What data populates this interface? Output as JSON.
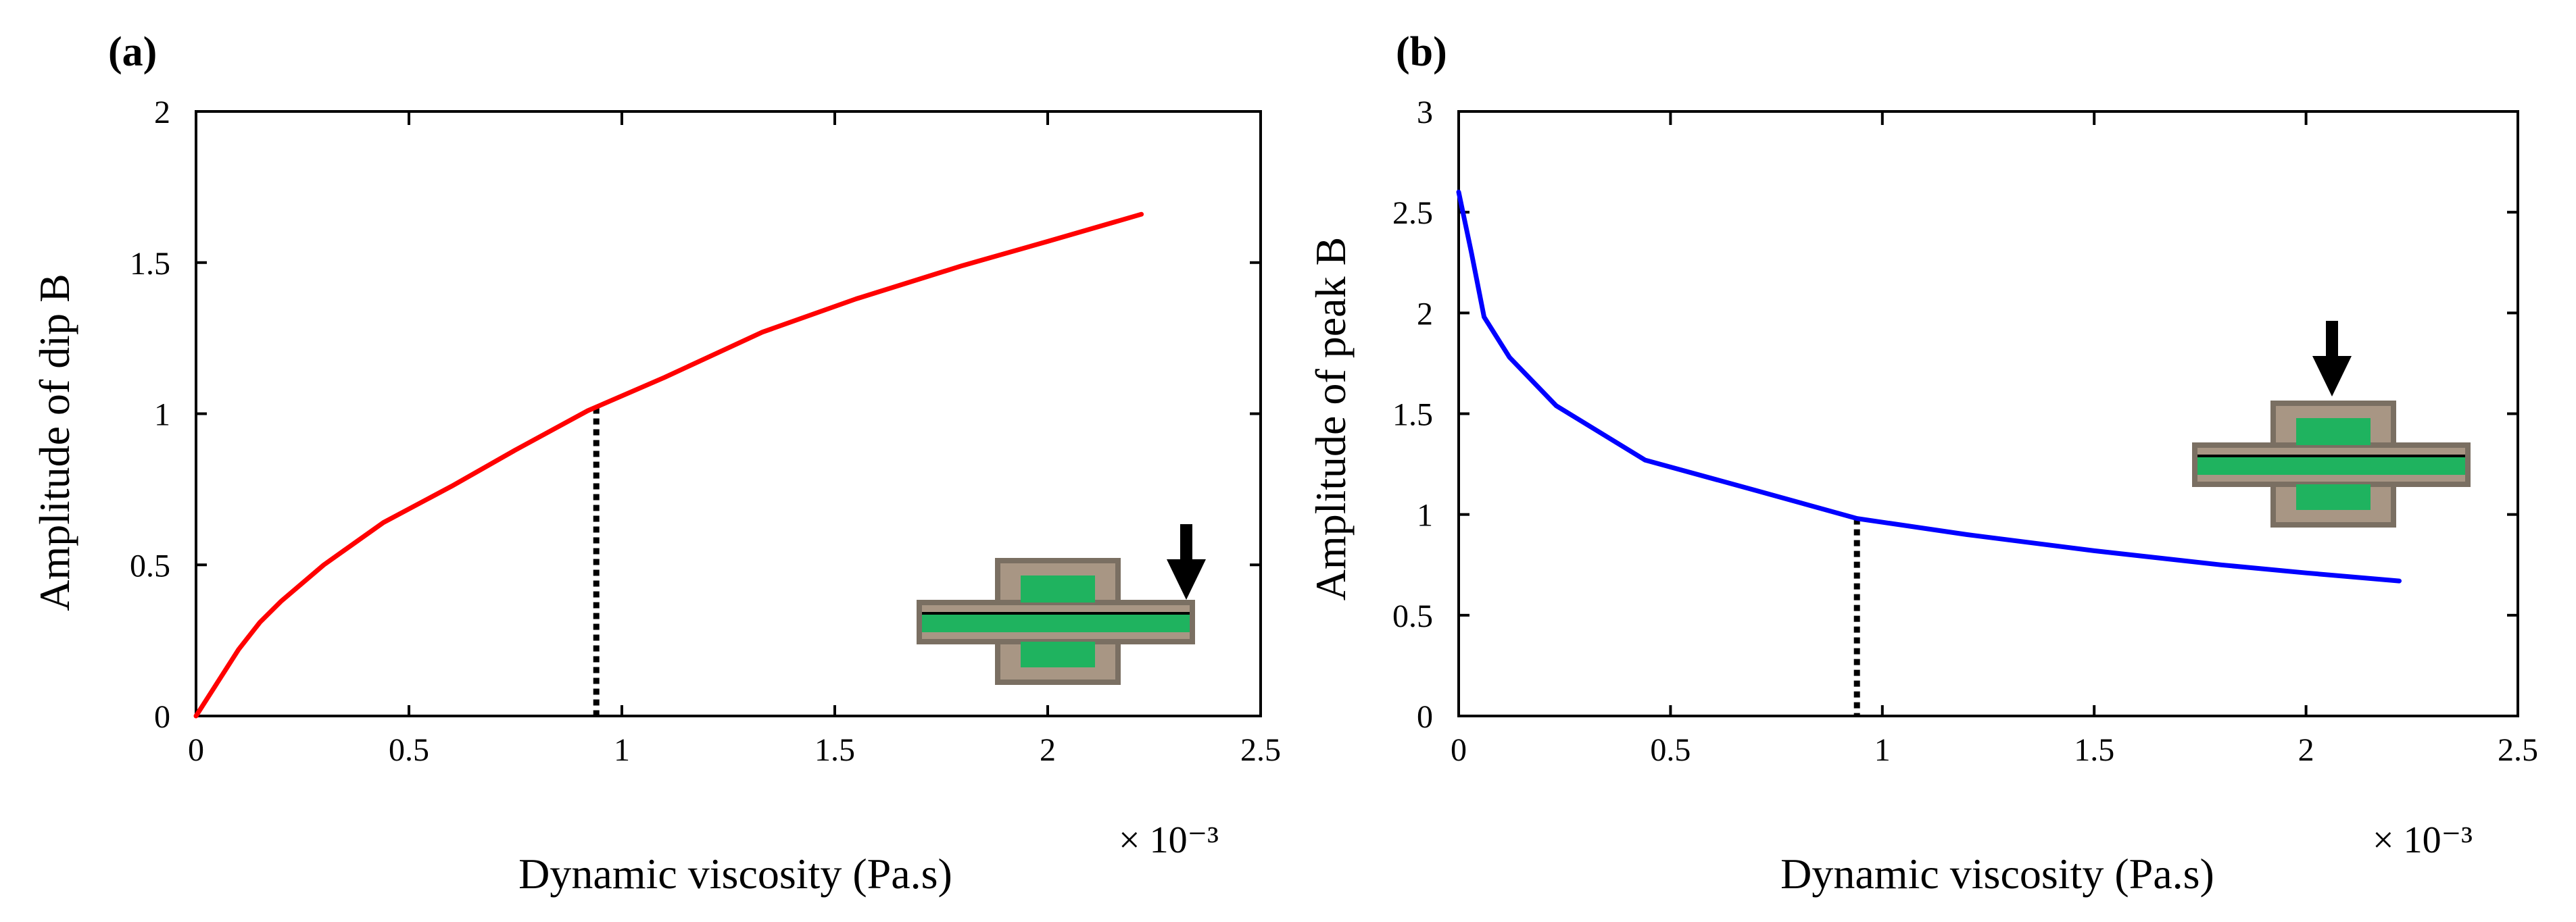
{
  "chart_data": [
    {
      "panel_label": "(a)",
      "type": "line",
      "xlabel": "Dynamic viscosity (Pa.s)",
      "ylabel": "Amplitude of dip B",
      "x_exponent_label": "× 10⁻³",
      "xlim": [
        0,
        2.5
      ],
      "ylim": [
        0,
        2
      ],
      "x_ticks": [
        0,
        0.5,
        1,
        1.5,
        2,
        2.5
      ],
      "y_ticks": [
        0,
        0.5,
        1,
        1.5,
        2
      ],
      "x_tick_labels": [
        "0",
        "0.5",
        "1",
        "1.5",
        "2",
        "2.5"
      ],
      "y_tick_labels": [
        "0",
        "0.5",
        "1",
        "1.5",
        "2"
      ],
      "grid": false,
      "series": [
        {
          "name": "dip B",
          "color": "#ff0000",
          "x": [
            0,
            0.05,
            0.1,
            0.15,
            0.2,
            0.3,
            0.44,
            0.6,
            0.75,
            0.92,
            1.1,
            1.33,
            1.55,
            1.8,
            2.0,
            2.22
          ],
          "y": [
            0,
            0.11,
            0.22,
            0.31,
            0.38,
            0.5,
            0.64,
            0.76,
            0.88,
            1.01,
            1.12,
            1.27,
            1.38,
            1.49,
            1.57,
            1.66
          ]
        }
      ],
      "marker_line": {
        "x": 0.94,
        "y": 1.02,
        "style": "dotted",
        "color": "#000000"
      },
      "inset": {
        "description": "sensor-geometry",
        "arrow_position": "right",
        "colors": {
          "frame": "#7a6f62",
          "fill": "#a89684",
          "core": "#1fb35f",
          "dark": "#000000"
        }
      }
    },
    {
      "panel_label": "(b)",
      "type": "line",
      "xlabel": "Dynamic viscosity (Pa.s)",
      "ylabel": "Amplitude of peak B",
      "x_exponent_label": "× 10⁻³",
      "xlim": [
        0,
        2.5
      ],
      "ylim": [
        0,
        3
      ],
      "x_ticks": [
        0,
        0.5,
        1,
        1.5,
        2,
        2.5
      ],
      "y_ticks": [
        0,
        0.5,
        1,
        1.5,
        2,
        2.5,
        3
      ],
      "x_tick_labels": [
        "0",
        "0.5",
        "1",
        "1.5",
        "2",
        "2.5"
      ],
      "y_tick_labels": [
        "0",
        "0.5",
        "1",
        "1.5",
        "2",
        "2.5",
        "3"
      ],
      "grid": false,
      "series": [
        {
          "name": "peak B",
          "color": "#0000ff",
          "x": [
            0,
            0.03,
            0.06,
            0.12,
            0.23,
            0.44,
            0.7,
            0.94,
            1.2,
            1.5,
            1.8,
            2.0,
            2.22
          ],
          "y": [
            2.6,
            2.3,
            1.98,
            1.78,
            1.54,
            1.27,
            1.12,
            0.98,
            0.9,
            0.82,
            0.75,
            0.71,
            0.67
          ]
        }
      ],
      "marker_line": {
        "x": 0.94,
        "y": 0.98,
        "style": "dotted",
        "color": "#000000"
      },
      "inset": {
        "description": "sensor-geometry",
        "arrow_position": "center-top",
        "colors": {
          "frame": "#7a6f62",
          "fill": "#a89684",
          "core": "#1fb35f",
          "dark": "#000000"
        }
      }
    }
  ]
}
